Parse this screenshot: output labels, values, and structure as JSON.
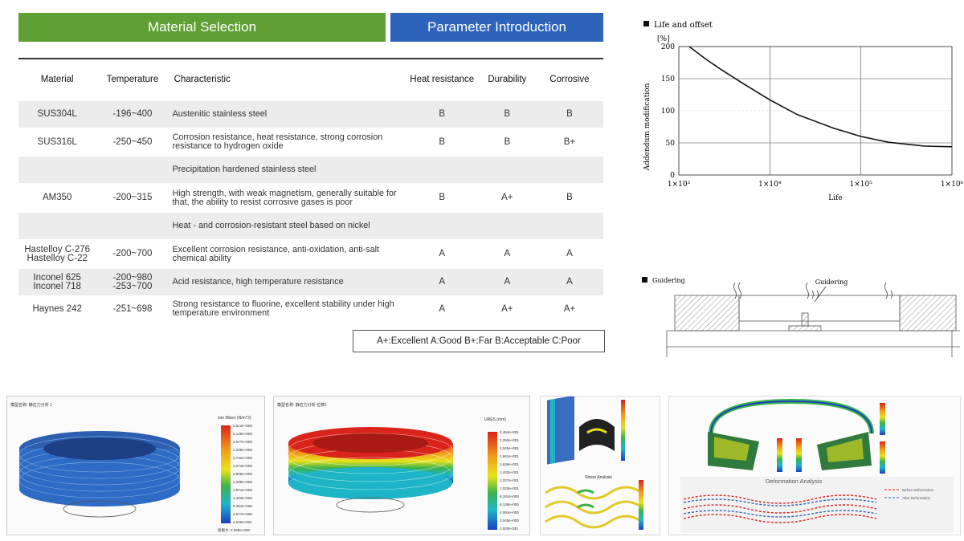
{
  "tabs": {
    "material_selection": "Material Selection",
    "parameter_introduction": "Parameter Introduction"
  },
  "table": {
    "headers": [
      "Material",
      "Temperature",
      "Characteristic",
      "Heat resistance",
      "Durability",
      "Corrosive"
    ],
    "rows": [
      {
        "material": "SUS304L",
        "temperature": "-196~400",
        "characteristic": "Austenitic stainless steel",
        "heat": "B",
        "durability": "B",
        "corrosive": "B"
      },
      {
        "material": "SUS316L",
        "temperature": "-250~450",
        "characteristic": "Corrosion resistance, heat resistance, strong corrosion resistance to hydrogen oxide",
        "heat": "B",
        "durability": "B",
        "corrosive": "B+"
      },
      {
        "section": "Precipitation hardened stainless steel"
      },
      {
        "material": "AM350",
        "temperature": "-200~315",
        "characteristic": "High strength, with weak magnetism, generally suitable for that, the ability to resist corrosive gases is poor",
        "heat": "B",
        "durability": "A+",
        "corrosive": "B"
      },
      {
        "section": "Heat - and corrosion-resistant steel based on nickel"
      },
      {
        "material": "Hastelloy C-276 Hastelloy C-22",
        "temperature": "-200~700",
        "characteristic": "Excellent corrosion resistance, anti-oxidation, anti-salt chemical ability",
        "heat": "A",
        "durability": "A",
        "corrosive": "A"
      },
      {
        "material": "Inconel 625 Inconel 718",
        "temperature": "-200~980 -253~700",
        "characteristic": "Acid resistance, high temperature resistance",
        "heat": "A",
        "durability": "A",
        "corrosive": "A"
      },
      {
        "material": "Haynes 242",
        "temperature": "-251~698",
        "characteristic": "Strong resistance to fluorine, excellent stability under high temperature environment",
        "heat": "A",
        "durability": "A+",
        "corrosive": "A+"
      }
    ],
    "legend": "A+:Excellent A:Good B+:Far B:Acceptable C:Poor"
  },
  "chart_data": {
    "type": "line",
    "title": "Life and offset",
    "xlabel": "Life",
    "ylabel": "Addendum modification",
    "y_unit": "[%]",
    "x_scale": "log",
    "xlim": [
      1000,
      1000000
    ],
    "ylim": [
      0,
      200
    ],
    "x_ticks": [
      "1×10³",
      "1×10⁴",
      "1×10⁵",
      "1×10⁶"
    ],
    "y_ticks": [
      "0",
      "50",
      "100",
      "150",
      "200"
    ],
    "grid": true,
    "series": [
      {
        "x": [
          1300,
          2000,
          3000,
          5000,
          10000,
          20000,
          50000,
          100000,
          200000,
          500000,
          1000000
        ],
        "y": [
          200,
          180,
          163,
          143,
          117,
          94,
          73,
          60,
          51,
          45,
          44
        ]
      }
    ]
  },
  "guidering": {
    "title": "Guidering",
    "label": "Guidering"
  },
  "simulations": {
    "sim1": {
      "header": "模型名称: 静应力分析 1",
      "legend_title": "von Mises (N/m^2)",
      "legend_values": [
        "5.612e+009",
        "5.145e+009",
        "4.677e+009",
        "4.209e+009",
        "3.742e+009",
        "3.274e+009",
        "2.806e+009",
        "2.339e+009",
        "1.871e+009",
        "1.403e+009",
        "9.354e+008",
        "4.677e+008",
        "4.040e+001"
      ],
      "footer": "屈服力: 2.068e+008"
    },
    "sim2": {
      "header": "模型名称: 静应力分析 位移1",
      "legend_title": "URES (mm)",
      "legend_values": [
        "2.454e+001",
        "2.250e+001",
        "2.045e+001",
        "1.841e+001",
        "1.636e+001",
        "1.432e+001",
        "1.227e+001",
        "1.023e+001",
        "8.181e+000",
        "6.136e+000",
        "4.091e+000",
        "2.045e+000",
        "1.000e-030"
      ]
    },
    "stress_label": "Stress Analysis",
    "deformation_title": "Deformation Analysis",
    "deformation_legend": [
      "Before Deformation",
      "After Deformation"
    ]
  },
  "colors": {
    "green_tab": "#5ea033",
    "blue_tab": "#2d63b8",
    "row_shade": "#ececec"
  }
}
